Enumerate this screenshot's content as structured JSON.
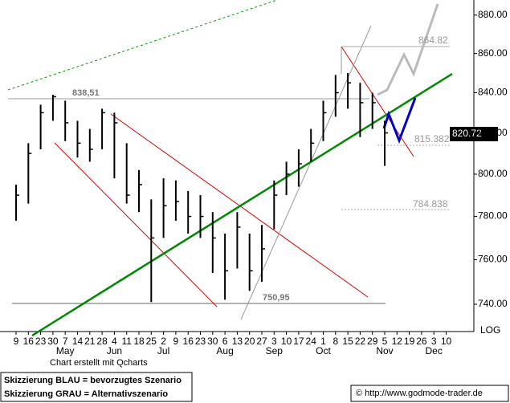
{
  "chart_data": {
    "type": "ohlc",
    "categories": [
      "9",
      "16",
      "23",
      "30",
      "7",
      "14",
      "21",
      "28",
      "4",
      "11",
      "18",
      "25",
      "2",
      "9",
      "16",
      "23",
      "30",
      "6",
      "13",
      "20",
      "27",
      "3",
      "10",
      "17",
      "24",
      "1",
      "8",
      "15",
      "22",
      "29",
      "5",
      "12",
      "19",
      "26",
      "3",
      "10"
    ],
    "month_labels": [
      null,
      null,
      null,
      null,
      "May",
      null,
      null,
      null,
      "Jun",
      null,
      null,
      null,
      "Jul",
      null,
      null,
      null,
      null,
      "Aug",
      null,
      null,
      null,
      "Sep",
      null,
      null,
      null,
      "Oct",
      null,
      null,
      null,
      null,
      "Nov",
      null,
      null,
      null,
      "Dec",
      null
    ],
    "series": [
      {
        "name": "High",
        "values": [
          795,
          815,
          834,
          839,
          836,
          826,
          822,
          832,
          830,
          815,
          802,
          788,
          798,
          797,
          792,
          790,
          782,
          772,
          782,
          772,
          776,
          797,
          806,
          812,
          822,
          836,
          849,
          850,
          845,
          840,
          826,
          null,
          null,
          null,
          null,
          null
        ]
      },
      {
        "name": "Low",
        "values": [
          778,
          786,
          812,
          826,
          816,
          808,
          806,
          812,
          798,
          786,
          782,
          741,
          770,
          778,
          772,
          770,
          754,
          742,
          756,
          746,
          750,
          774,
          790,
          794,
          806,
          816,
          828,
          832,
          818,
          822,
          804,
          null,
          null,
          null,
          null,
          null
        ]
      },
      {
        "name": "Close",
        "values": [
          790,
          810,
          830,
          838,
          825,
          815,
          812,
          830,
          825,
          790,
          795,
          770,
          785,
          787,
          780,
          780,
          770,
          755,
          775,
          755,
          765,
          790,
          800,
          805,
          815,
          830,
          840,
          845,
          835,
          835,
          820,
          null,
          null,
          null,
          null,
          null
        ]
      }
    ],
    "color": "#000000",
    "ylim": [
      728,
      888
    ],
    "yticks": [
      {
        "value": 740,
        "label": "740.00"
      },
      {
        "value": 760,
        "label": "760.00"
      },
      {
        "value": 780,
        "label": "780.00"
      },
      {
        "value": 800,
        "label": "800.00"
      },
      {
        "value": 820,
        "label": "820.00"
      },
      {
        "value": 840,
        "label": "840.00"
      },
      {
        "value": 860,
        "label": "860.00"
      },
      {
        "value": 880,
        "label": "880.00"
      }
    ],
    "log_scale": true,
    "scale_label": "LOG",
    "last_price_label": "820.72",
    "annotations": [
      "838,51",
      "750,95",
      "864.82",
      "815.382",
      "784.838"
    ],
    "credit": "Chart erstellt mit Qcharts",
    "legend_lines": [
      "Skizzierung BLAU = bevorzugtes Szenario",
      "Skizzierung GRAU = Alternativszenario"
    ],
    "copyright": "© http://www.godmode-trader.de"
  }
}
